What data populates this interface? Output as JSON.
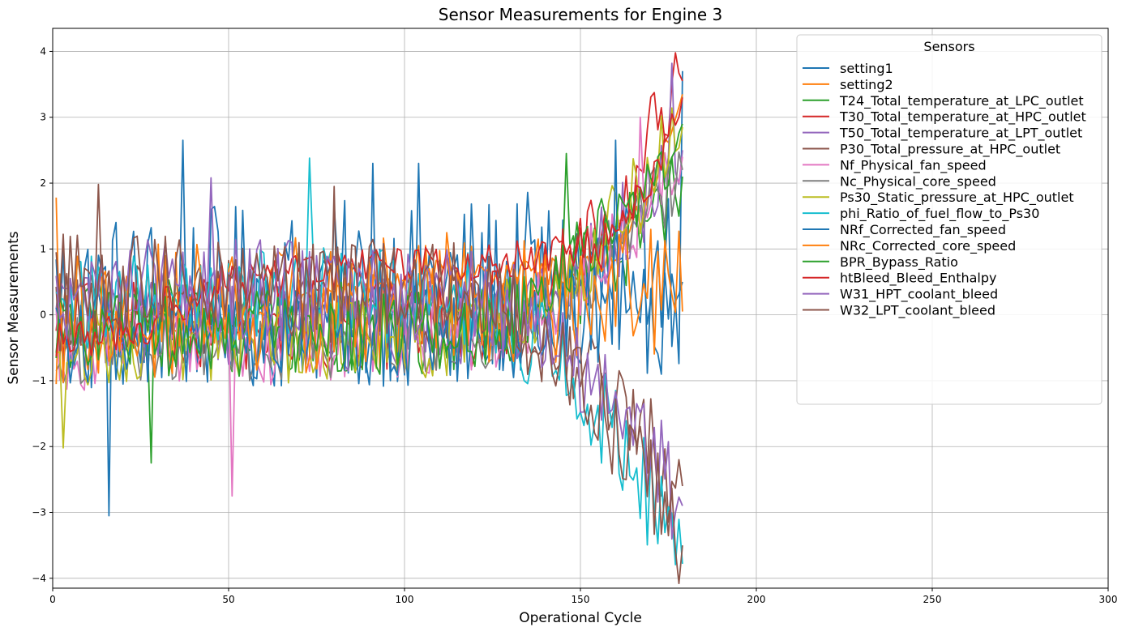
{
  "chart_data": {
    "type": "line",
    "title": "Sensor Measurements for Engine 3",
    "xlabel": "Operational Cycle",
    "ylabel": "Sensor Measurements",
    "xlim": [
      0,
      300
    ],
    "ylim": [
      -4.15,
      4.35
    ],
    "xticks": [
      0,
      50,
      100,
      150,
      200,
      250,
      300
    ],
    "yticks": [
      -4,
      -3,
      -2,
      -1,
      0,
      1,
      2,
      3,
      4
    ],
    "xtick_labels": [
      "0",
      "50",
      "100",
      "150",
      "200",
      "250",
      "300"
    ],
    "ytick_labels": [
      "−4",
      "−3",
      "−2",
      "−1",
      "0",
      "1",
      "2",
      "3",
      "4"
    ],
    "grid": true,
    "legend": {
      "title": "Sensors",
      "placement": "top-right"
    },
    "x_range": [
      1,
      179
    ],
    "series": [
      {
        "name": "setting1",
        "color": "#1f77b4",
        "trend": "noisy",
        "amplitude": 1.1,
        "end": 3.7,
        "spikes": [
          [
            16,
            -3.05
          ],
          [
            37,
            2.65
          ],
          [
            91,
            2.3
          ],
          [
            104,
            2.3
          ]
        ]
      },
      {
        "name": "setting2",
        "color": "#ff7f0e",
        "trend": "step",
        "amplitude": 0.15,
        "end": 3.35,
        "spikes": [
          [
            1,
            1.78
          ]
        ]
      },
      {
        "name": "T24_Total_temperature_at_LPC_outlet",
        "color": "#2ca02c",
        "trend": "up",
        "amplitude": 0.55,
        "end": 2.1,
        "spikes": [
          [
            28,
            -2.25
          ],
          [
            146,
            2.45
          ]
        ]
      },
      {
        "name": "T30_Total_temperature_at_HPC_outlet",
        "color": "#d62728",
        "trend": "up",
        "amplitude": 0.55,
        "end": 3.55,
        "spikes": [
          [
            177,
            3.98
          ]
        ]
      },
      {
        "name": "T50_Total_temperature_at_LPT_outlet",
        "color": "#9467bd",
        "trend": "up",
        "amplitude": 0.55,
        "end": 2.5,
        "spikes": [
          [
            45,
            2.08
          ],
          [
            176,
            3.82
          ]
        ]
      },
      {
        "name": "P30_Total_pressure_at_HPC_outlet",
        "color": "#8c564b",
        "trend": "down",
        "amplitude": 0.55,
        "end": -2.6,
        "spikes": [
          [
            13,
            1.98
          ],
          [
            80,
            1.95
          ],
          [
            175,
            -3.15
          ]
        ]
      },
      {
        "name": "Nf_Physical_fan_speed",
        "color": "#e377c2",
        "trend": "up",
        "amplitude": 0.5,
        "end": 2.4,
        "spikes": [
          [
            51,
            -2.75
          ],
          [
            167,
            3.0
          ]
        ]
      },
      {
        "name": "Nc_Physical_core_speed",
        "color": "#7f7f7f",
        "trend": "up",
        "amplitude": 0.45,
        "end": 2.2,
        "spikes": []
      },
      {
        "name": "Ps30_Static_pressure_at_HPC_outlet",
        "color": "#bcbd22",
        "trend": "up",
        "amplitude": 0.5,
        "end": 2.85,
        "spikes": [
          [
            3,
            -2.02
          ],
          [
            173,
            3.02
          ]
        ]
      },
      {
        "name": "phi_Ratio_of_fuel_flow_to_Ps30",
        "color": "#17becf",
        "trend": "down",
        "amplitude": 0.6,
        "end": -3.78,
        "spikes": [
          [
            73,
            2.38
          ]
        ]
      },
      {
        "name": "NRf_Corrected_fan_speed",
        "color": "#1f77b4",
        "trend": "up",
        "amplitude": 0.6,
        "end": 0.5,
        "spikes": [
          [
            160,
            2.65
          ]
        ]
      },
      {
        "name": "NRc_Corrected_core_speed",
        "color": "#ff7f0e",
        "trend": "noisy",
        "amplitude": 0.8,
        "end": 0.05,
        "spikes": []
      },
      {
        "name": "BPR_Bypass_Ratio",
        "color": "#2ca02c",
        "trend": "up",
        "amplitude": 0.5,
        "end": 2.9,
        "spikes": []
      },
      {
        "name": "htBleed_Bleed_Enthalpy",
        "color": "#d62728",
        "trend": "step",
        "amplitude": 0.2,
        "end": 3.3,
        "spikes": []
      },
      {
        "name": "W31_HPT_coolant_bleed",
        "color": "#9467bd",
        "trend": "down",
        "amplitude": 0.6,
        "end": -2.9,
        "spikes": []
      },
      {
        "name": "W32_LPT_coolant_bleed",
        "color": "#8c564b",
        "trend": "down",
        "amplitude": 0.6,
        "end": -3.5,
        "spikes": []
      }
    ]
  }
}
